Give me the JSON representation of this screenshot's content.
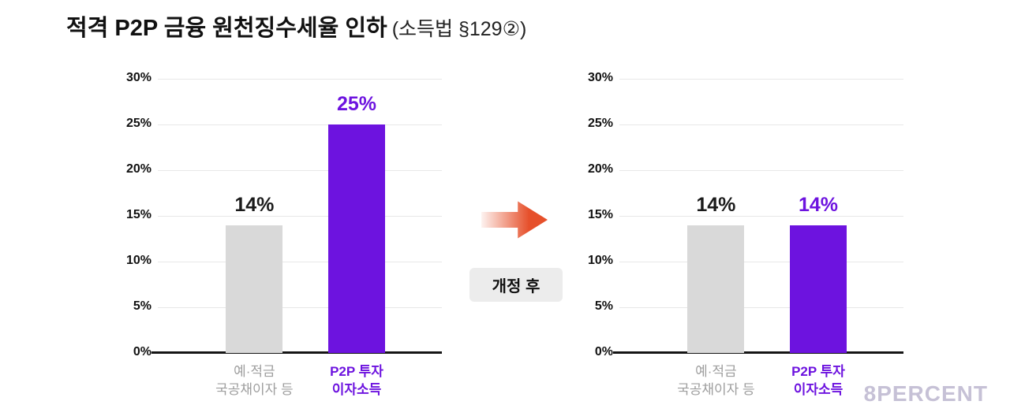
{
  "header": {
    "title": "적격 P2P 금융 원천징수세율 인하",
    "subtitle": "(소득법 §129②)"
  },
  "middle": {
    "badge_label": "개정 후",
    "arrow_color": "#e6502b"
  },
  "footer": {
    "watermark": "8PERCENT"
  },
  "colors": {
    "purple": "#6d13df",
    "gray_bar": "#d9d9d9",
    "grid": "#e7e7e7",
    "axis": "#151515",
    "category_gray": "#9e9e9e",
    "watermark_gray": "#c6c1d6"
  },
  "chart_data": [
    {
      "type": "bar",
      "name": "before",
      "categories": [
        [
          "예·적금",
          "국공채이자 등"
        ],
        [
          "P2P 투자",
          "이자소득"
        ]
      ],
      "values": [
        14,
        25
      ],
      "value_labels": [
        "14%",
        "25%"
      ],
      "bar_colors": [
        "#d9d9d9",
        "#6d13df"
      ],
      "value_label_colors": [
        "#1b1b1b",
        "#6d13df"
      ],
      "category_colors": [
        "#9e9e9e",
        "#6d13df"
      ],
      "category_bold": [
        false,
        true
      ],
      "ylim": [
        0,
        30
      ],
      "yticks": [
        0,
        5,
        10,
        15,
        20,
        25,
        30
      ],
      "ytick_suffix": "%",
      "grid": true
    },
    {
      "type": "bar",
      "name": "after",
      "categories": [
        [
          "예·적금",
          "국공채이자 등"
        ],
        [
          "P2P 투자",
          "이자소득"
        ]
      ],
      "values": [
        14,
        14
      ],
      "value_labels": [
        "14%",
        "14%"
      ],
      "bar_colors": [
        "#d9d9d9",
        "#6d13df"
      ],
      "value_label_colors": [
        "#1b1b1b",
        "#6d13df"
      ],
      "category_colors": [
        "#9e9e9e",
        "#6d13df"
      ],
      "category_bold": [
        false,
        true
      ],
      "ylim": [
        0,
        30
      ],
      "yticks": [
        0,
        5,
        10,
        15,
        20,
        25,
        30
      ],
      "ytick_suffix": "%",
      "grid": true
    }
  ]
}
